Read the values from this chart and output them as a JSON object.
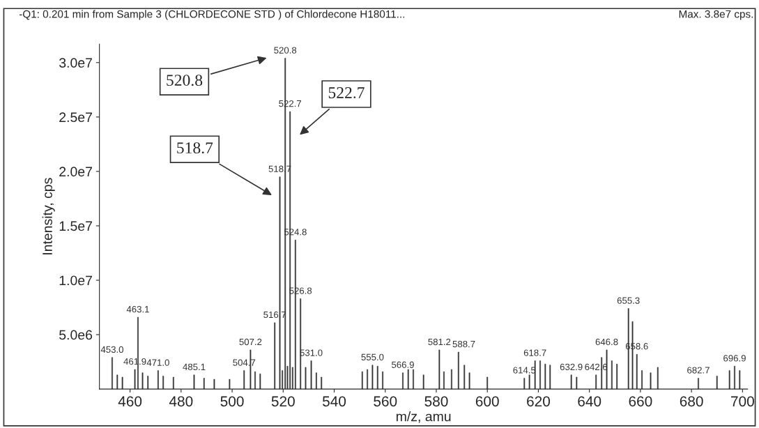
{
  "chart_data": {
    "type": "bar",
    "title": "-Q1: 0.201 min from Sample 3 (CHLORDECONE STD ) of Chlordecone H18011...",
    "subtitle": "Max. 3.8e7 cps.",
    "xlabel": "m/z, amu",
    "ylabel": "Intensity, cps",
    "color": "#333333",
    "x": [
      453.0,
      455.0,
      457.0,
      461.9,
      463.1,
      464.9,
      467.0,
      471.0,
      473.0,
      477.0,
      485.1,
      489.0,
      493.0,
      499.0,
      504.7,
      507.2,
      509.0,
      511.0,
      516.7,
      518.7,
      519.7,
      520.8,
      521.7,
      522.7,
      523.7,
      524.8,
      526.8,
      528.8,
      531.0,
      533.0,
      535.0,
      551.0,
      553.0,
      555.0,
      557.0,
      559.0,
      566.9,
      569.0,
      571.0,
      575.0,
      581.2,
      583.0,
      586.0,
      588.7,
      591.0,
      593.0,
      600.0,
      614.5,
      616.5,
      618.7,
      620.7,
      622.7,
      624.6,
      632.9,
      635.0,
      642.6,
      644.8,
      646.8,
      648.8,
      650.8,
      655.3,
      656.9,
      658.6,
      660.6,
      664.0,
      666.8,
      682.7,
      690.0,
      694.9,
      696.9,
      698.9
    ],
    "values": [
      2900000,
      1300000,
      1100000,
      1800000,
      6600000,
      1500000,
      1200000,
      1700000,
      1200000,
      1100000,
      1300000,
      1000000,
      900000,
      900000,
      1700000,
      3600000,
      1600000,
      1400000,
      6100000,
      19500000,
      1700000,
      30400000,
      2100000,
      25500000,
      2000000,
      13700000,
      8300000,
      2000000,
      2600000,
      1500000,
      1100000,
      1600000,
      1800000,
      2200000,
      2100000,
      1600000,
      1500000,
      1800000,
      1800000,
      1300000,
      3600000,
      1600000,
      1800000,
      3400000,
      2200000,
      1500000,
      1100000,
      1000000,
      1300000,
      2600000,
      2600000,
      2300000,
      2200000,
      1300000,
      1100000,
      1300000,
      2900000,
      3600000,
      2600000,
      2300000,
      7400000,
      6200000,
      3200000,
      1700000,
      1500000,
      2000000,
      1000000,
      1200000,
      1700000,
      2100000,
      1700000
    ],
    "xlim": [
      448,
      702
    ],
    "xticks": [
      460,
      480,
      500,
      520,
      540,
      560,
      580,
      600,
      620,
      640,
      660,
      680,
      700
    ],
    "ylim": [
      0,
      31700000
    ],
    "yticks": [
      {
        "value": 5000000,
        "label": "5.0e6"
      },
      {
        "value": 10000000,
        "label": "1.0e7"
      },
      {
        "value": 15000000,
        "label": "1.5e7"
      },
      {
        "value": 20000000,
        "label": "2.0e7"
      },
      {
        "value": 25000000,
        "label": "2.5e7"
      },
      {
        "value": 30000000,
        "label": "3.0e7"
      }
    ],
    "grid": false,
    "annotations": [
      "520.8",
      "522.7",
      "518.7",
      {
        "text": "453.0",
        "x": 453.0,
        "y": 2900000
      },
      {
        "text": "461.9",
        "x": 461.9,
        "y": 1800000
      },
      {
        "text": "463.1",
        "x": 463.1,
        "y": 6600000
      },
      {
        "text": "471.0",
        "x": 471.0,
        "y": 1700000
      },
      {
        "text": "485.1",
        "x": 485.1,
        "y": 1300000
      },
      {
        "text": "504.7",
        "x": 504.7,
        "y": 1700000
      },
      {
        "text": "507.2",
        "x": 507.2,
        "y": 3600000
      },
      {
        "text": "516.7",
        "x": 516.7,
        "y": 6100000
      },
      {
        "text": "518.7",
        "x": 518.7,
        "y": 19500000
      },
      {
        "text": "520.8",
        "x": 520.8,
        "y": 30400000
      },
      {
        "text": "522.7",
        "x": 522.7,
        "y": 25500000
      },
      {
        "text": "524.8",
        "x": 524.8,
        "y": 13700000
      },
      {
        "text": "526.8",
        "x": 526.8,
        "y": 8300000
      },
      {
        "text": "531.0",
        "x": 531.0,
        "y": 2600000
      },
      {
        "text": "555.0",
        "x": 555.0,
        "y": 2200000
      },
      {
        "text": "566.9",
        "x": 566.9,
        "y": 1500000
      },
      {
        "text": "581.2",
        "x": 581.2,
        "y": 3600000
      },
      {
        "text": "588.7",
        "x": 588.7,
        "y": 3400000
      },
      {
        "text": "614.5",
        "x": 614.5,
        "y": 1000000
      },
      {
        "text": "618.7",
        "x": 618.7,
        "y": 2600000
      },
      {
        "text": "632.9",
        "x": 632.9,
        "y": 1300000
      },
      {
        "text": "642.6",
        "x": 642.6,
        "y": 1300000
      },
      {
        "text": "646.8",
        "x": 646.8,
        "y": 3600000
      },
      {
        "text": "655.3",
        "x": 655.3,
        "y": 7400000
      },
      {
        "text": "658.6",
        "x": 658.6,
        "y": 3200000
      },
      {
        "text": "682.7",
        "x": 682.7,
        "y": 1000000
      },
      {
        "text": "696.9",
        "x": 696.9,
        "y": 2100000
      }
    ]
  }
}
